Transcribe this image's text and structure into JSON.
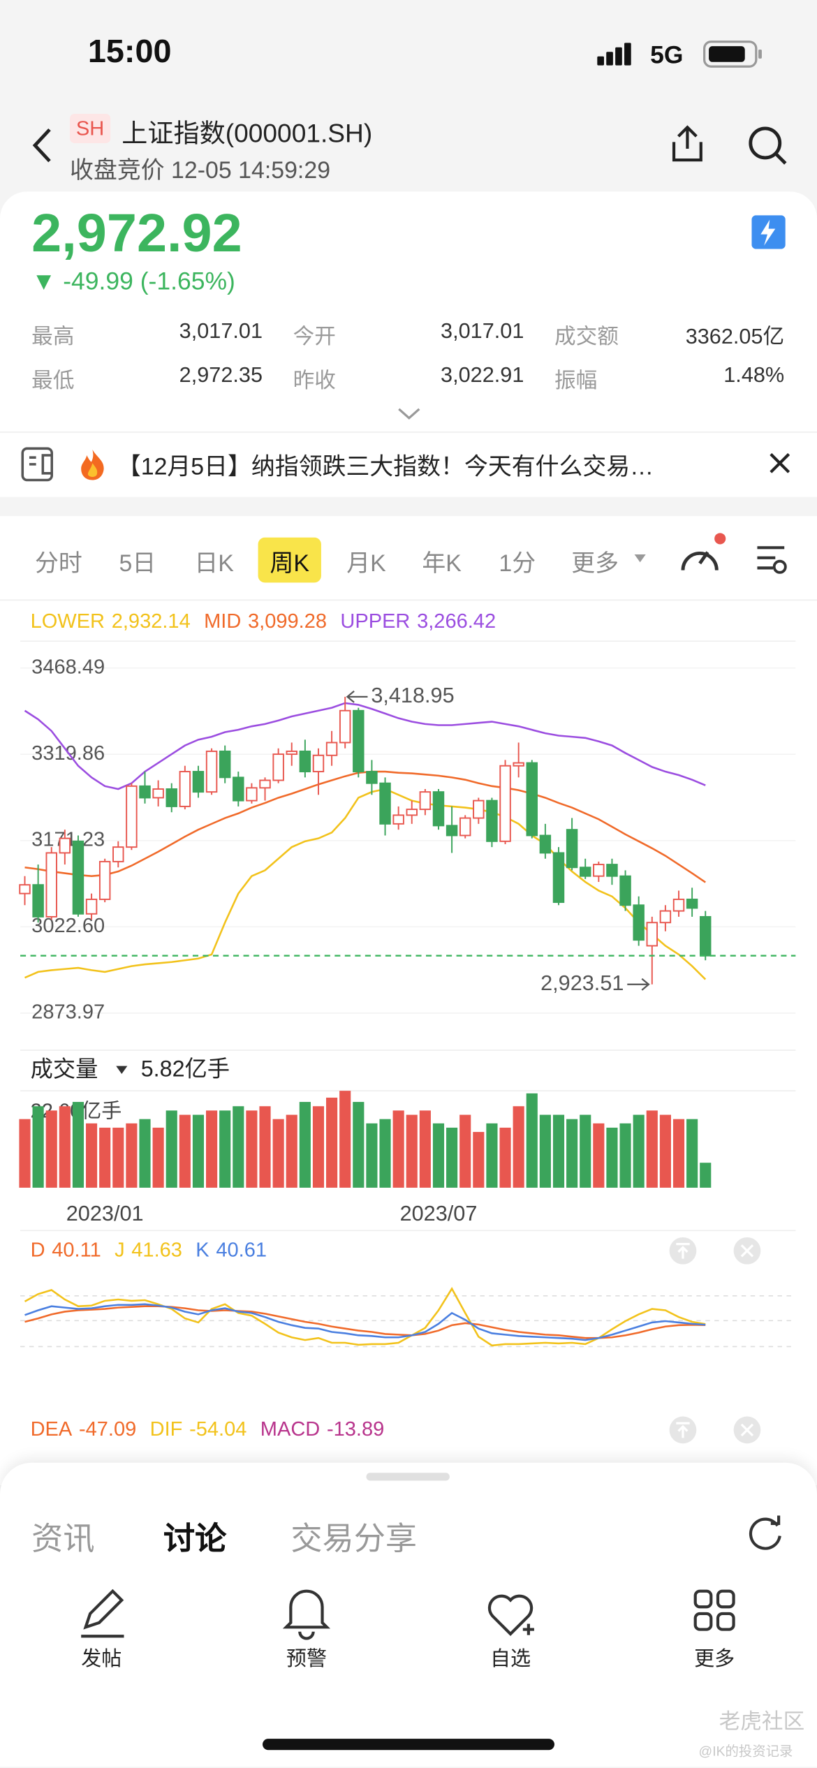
{
  "status_bar": {
    "time": "15:00",
    "network": "5G"
  },
  "header": {
    "market": "SH",
    "title": "上证指数(000001.SH)",
    "subtitle": "收盘竞价 12-05 14:59:29"
  },
  "quote": {
    "price": "2,972.92",
    "change": "▼ -49.99 (-1.65%)",
    "stats": [
      [
        "最高",
        "3,017.01",
        "今开",
        "3,017.01",
        "成交额",
        "3362.05亿"
      ],
      [
        "最低",
        "2,972.35",
        "昨收",
        "3,022.91",
        "振幅",
        "1.48%"
      ]
    ]
  },
  "news": {
    "text": "【12月5日】纳指领跌三大指数！今天有什么交易…"
  },
  "period_tabs": {
    "items": [
      "分时",
      "5日",
      "日K",
      "周K",
      "月K",
      "年K",
      "1分",
      "更多"
    ],
    "active": 3
  },
  "chart_data": {
    "type": "candlestick",
    "up_color": "#e8574f",
    "down_color": "#3ba45b",
    "ylim": [
      2814,
      3503
    ],
    "yticks": [
      3468.49,
      3319.86,
      3171.23,
      {
        "value": 3022.6,
        "label": "3022.60"
      },
      2873.97
    ],
    "price_line": 2972.92,
    "high_label": "3,418.95",
    "low_label": "2,923.51",
    "bands": [
      {
        "name": "LOWER",
        "label": "2,932.14",
        "color": "#f2c21b",
        "values": [
          2935,
          2945,
          2948,
          2950,
          2952,
          2948,
          2945,
          2950,
          2955,
          2958,
          2960,
          2962,
          2965,
          2968,
          2975,
          3030,
          3080,
          3110,
          3120,
          3140,
          3160,
          3170,
          3175,
          3185,
          3210,
          3245,
          3255,
          3260,
          3250,
          3240,
          3235,
          3232,
          3230,
          3228,
          3225,
          3220,
          3212,
          3200,
          3180,
          3165,
          3140,
          3118,
          3100,
          3085,
          3075,
          3055,
          3030,
          3010,
          2990,
          2975,
          2955,
          2932.14
        ]
      },
      {
        "name": "MID",
        "label": "3,099.28",
        "color": "#f06a2a",
        "values": [
          3125,
          3122,
          3118,
          3115,
          3112,
          3110,
          3112,
          3118,
          3128,
          3140,
          3152,
          3165,
          3178,
          3190,
          3200,
          3210,
          3218,
          3228,
          3236,
          3245,
          3252,
          3260,
          3268,
          3275,
          3282,
          3288,
          3290,
          3290,
          3288,
          3287,
          3285,
          3283,
          3280,
          3276,
          3270,
          3265,
          3262,
          3258,
          3252,
          3245,
          3236,
          3228,
          3218,
          3208,
          3195,
          3182,
          3170,
          3158,
          3145,
          3130,
          3115,
          3099.28
        ]
      },
      {
        "name": "UPPER",
        "label": "3,266.42",
        "color": "#9b4de0",
        "values": [
          3395,
          3380,
          3360,
          3330,
          3300,
          3280,
          3265,
          3260,
          3270,
          3290,
          3305,
          3320,
          3335,
          3345,
          3350,
          3358,
          3362,
          3368,
          3372,
          3378,
          3385,
          3390,
          3395,
          3400,
          3408,
          3405,
          3398,
          3390,
          3382,
          3376,
          3372,
          3370,
          3370,
          3372,
          3374,
          3376,
          3372,
          3368,
          3362,
          3356,
          3352,
          3350,
          3348,
          3342,
          3335,
          3322,
          3310,
          3298,
          3290,
          3284,
          3276,
          3266.42
        ]
      }
    ],
    "candles": [
      [
        3080,
        3110,
        3060,
        3095
      ],
      [
        3095,
        3130,
        3030,
        3040
      ],
      [
        3040,
        3160,
        3035,
        3150
      ],
      [
        3150,
        3190,
        3130,
        3175
      ],
      [
        3170,
        3180,
        3040,
        3045
      ],
      [
        3045,
        3080,
        3035,
        3070
      ],
      [
        3070,
        3140,
        3065,
        3135
      ],
      [
        3135,
        3170,
        3125,
        3160
      ],
      [
        3160,
        3270,
        3155,
        3265
      ],
      [
        3265,
        3290,
        3235,
        3245
      ],
      [
        3245,
        3275,
        3230,
        3260
      ],
      [
        3260,
        3270,
        3220,
        3230
      ],
      [
        3230,
        3300,
        3225,
        3290
      ],
      [
        3290,
        3300,
        3245,
        3255
      ],
      [
        3255,
        3330,
        3250,
        3325
      ],
      [
        3325,
        3335,
        3270,
        3280
      ],
      [
        3280,
        3290,
        3230,
        3240
      ],
      [
        3240,
        3270,
        3235,
        3262
      ],
      [
        3262,
        3280,
        3240,
        3275
      ],
      [
        3275,
        3330,
        3270,
        3320
      ],
      [
        3320,
        3340,
        3300,
        3325
      ],
      [
        3325,
        3345,
        3280,
        3290
      ],
      [
        3290,
        3330,
        3250,
        3318
      ],
      [
        3318,
        3360,
        3300,
        3340
      ],
      [
        3340,
        3418.95,
        3330,
        3395
      ],
      [
        3395,
        3400,
        3280,
        3290
      ],
      [
        3290,
        3310,
        3250,
        3270
      ],
      [
        3270,
        3280,
        3180,
        3200
      ],
      [
        3200,
        3230,
        3190,
        3215
      ],
      [
        3215,
        3240,
        3200,
        3225
      ],
      [
        3225,
        3260,
        3215,
        3255
      ],
      [
        3255,
        3260,
        3190,
        3197
      ],
      [
        3197,
        3230,
        3150,
        3180
      ],
      [
        3180,
        3215,
        3175,
        3210
      ],
      [
        3210,
        3245,
        3200,
        3240
      ],
      [
        3240,
        3245,
        3160,
        3170
      ],
      [
        3170,
        3310,
        3165,
        3300
      ],
      [
        3300,
        3340,
        3280,
        3305
      ],
      [
        3305,
        3310,
        3175,
        3180
      ],
      [
        3180,
        3200,
        3140,
        3150
      ],
      [
        3150,
        3160,
        3060,
        3065
      ],
      [
        3190,
        3210,
        3120,
        3125
      ],
      [
        3125,
        3140,
        3105,
        3110
      ],
      [
        3110,
        3135,
        3100,
        3130
      ],
      [
        3130,
        3140,
        3095,
        3110
      ],
      [
        3110,
        3120,
        3050,
        3060
      ],
      [
        3060,
        3075,
        2990,
        3000
      ],
      [
        2990,
        3040,
        2923.51,
        3030
      ],
      [
        3030,
        3060,
        3015,
        3050
      ],
      [
        3050,
        3085,
        3040,
        3070
      ],
      [
        3070,
        3090,
        3040,
        3055
      ],
      [
        3040,
        3050,
        2965,
        2972.92
      ]
    ],
    "x_labels": [
      null,
      null,
      null,
      null,
      null,
      null,
      "2023/01",
      null,
      null,
      null,
      null,
      null,
      null,
      null,
      null,
      null,
      null,
      null,
      null,
      null,
      null,
      null,
      null,
      null,
      null,
      null,
      null,
      null,
      null,
      null,
      null,
      "2023/07",
      null,
      null,
      null,
      null,
      null,
      null,
      null,
      null,
      null,
      null,
      null,
      null,
      null,
      null,
      null,
      null,
      null,
      null,
      null,
      null
    ],
    "volume": {
      "title": "成交量",
      "label": "5.82亿手",
      "ylim": [
        0,
        24.7
      ],
      "yticks": [
        {
          "value": 22.6,
          "label": "22.60亿手"
        }
      ],
      "values": [
        16,
        19,
        18,
        19,
        20,
        15,
        14,
        14,
        15,
        16,
        14,
        18,
        17,
        17,
        18,
        18,
        19,
        18,
        19,
        16,
        17,
        20,
        19,
        21,
        22.6,
        20,
        15,
        16,
        18,
        17,
        18,
        15,
        14,
        17,
        13,
        15,
        14,
        19,
        22,
        17,
        17,
        16,
        17,
        15,
        14,
        15,
        17,
        18,
        17,
        16,
        16,
        5.82
      ]
    },
    "kdj": {
      "ylim": [
        -20,
        120
      ],
      "series": [
        {
          "name": "D",
          "label": "40.11",
          "color": "#f06a2a",
          "values": [
            45,
            50,
            56,
            60,
            62,
            63,
            64,
            66,
            67,
            68,
            68,
            67,
            65,
            62,
            61,
            62,
            61,
            60,
            57,
            53,
            49,
            45,
            42,
            38,
            35,
            32,
            30,
            27,
            26,
            25,
            27,
            32,
            40,
            43,
            41,
            37,
            33,
            30,
            28,
            26,
            25,
            23,
            21,
            21,
            22,
            25,
            29,
            34,
            38,
            40,
            40.5,
            40.11
          ]
        },
        {
          "name": "J",
          "label": "41.63",
          "color": "#f2c21b",
          "values": [
            75,
            86,
            92,
            78,
            68,
            69,
            76,
            78,
            76,
            77,
            71,
            64,
            50,
            44,
            64,
            71,
            58,
            54,
            42,
            29,
            22,
            18,
            21,
            14,
            14,
            11,
            12,
            12,
            14,
            25,
            36,
            62,
            94,
            58,
            23,
            10,
            12,
            12,
            13,
            14,
            13,
            14,
            12,
            21,
            34,
            46,
            56,
            64,
            62,
            52,
            45,
            41.63
          ]
        },
        {
          "name": "K",
          "label": "40.61",
          "color": "#4a7fe0",
          "values": [
            55,
            62,
            68,
            66,
            64,
            65,
            68,
            70,
            70,
            71,
            69,
            66,
            60,
            56,
            62,
            65,
            60,
            58,
            52,
            45,
            40,
            36,
            35,
            30,
            28,
            25,
            24,
            22,
            22,
            25,
            30,
            42,
            58,
            48,
            35,
            28,
            26,
            24,
            23,
            22,
            21,
            20,
            18,
            21,
            26,
            32,
            38,
            44,
            46,
            44,
            42,
            40.61
          ]
        }
      ]
    },
    "macd": {
      "series": [
        {
          "name": "DEA",
          "label": "-47.09",
          "color": "#f06a2a"
        },
        {
          "name": "DIF",
          "label": "-54.04",
          "color": "#f2c21b"
        },
        {
          "name": "MACD",
          "label": "-13.89",
          "color": "#b8348c"
        }
      ]
    }
  },
  "sheet": {
    "tabs": [
      "资讯",
      "讨论",
      "交易分享"
    ],
    "active": 1
  },
  "nav": {
    "items": [
      "发帖",
      "预警",
      "自选",
      "更多"
    ]
  },
  "watermark": {
    "brand": "老虎社区",
    "author": "@IK的投资记录"
  }
}
